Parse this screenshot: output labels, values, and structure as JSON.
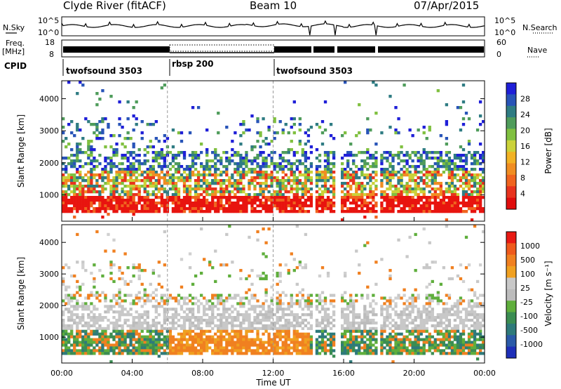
{
  "header": {
    "title": "Clyde River (fitACF)",
    "beam": "Beam 10",
    "date": "07/Apr/2015"
  },
  "top_panels": {
    "nsky_label": "N.Sky",
    "nsearch_label": "N.Search",
    "noise_ticks_left": [
      "10^5",
      "10^0"
    ],
    "noise_ticks_right": [
      "10^5",
      "10^0"
    ],
    "freq_label": "Freq.",
    "freq_unit": "[MHz]",
    "freq_ticks": [
      "18",
      "8"
    ],
    "nave_label": "Nave",
    "nave_ticks": [
      "60",
      "0"
    ],
    "cpid_label": "CPID",
    "cpid_segments": [
      {
        "name": "twofsound 3503",
        "start_hr": 0,
        "end_hr": 6
      },
      {
        "name": "rbsp 200",
        "start_hr": 6,
        "end_hr": 12
      },
      {
        "name": "twofsound 3503",
        "start_hr": 12,
        "end_hr": 24
      }
    ]
  },
  "chart_data": [
    {
      "type": "heatmap",
      "title": "",
      "xlabel": "Time UT",
      "ylabel": "Slant Range [km]",
      "x_ticks": [
        "00:00",
        "04:00",
        "08:00",
        "12:00",
        "16:00",
        "20:00",
        "00:00"
      ],
      "xlim_hours": [
        0,
        24
      ],
      "y_ticks": [
        1000,
        2000,
        3000,
        4000
      ],
      "ylim_km": [
        180,
        4560
      ],
      "colorbar_label": "Power [dB]",
      "colorbar_ticks": [
        4,
        8,
        12,
        16,
        20,
        24,
        28
      ],
      "colorbar_colors": [
        "#1f1fd8",
        "#2854b8",
        "#2f7c83",
        "#4f9c5b",
        "#80c040",
        "#cbd23a",
        "#f2b224",
        "#f08d22",
        "#f0641f",
        "#e8331e",
        "#e00d0d"
      ]
    },
    {
      "type": "heatmap",
      "title": "",
      "xlabel": "Time UT",
      "ylabel": "Slant Range [km]",
      "x_ticks": [
        "00:00",
        "04:00",
        "08:00",
        "12:00",
        "16:00",
        "20:00",
        "00:00"
      ],
      "xlim_hours": [
        0,
        24
      ],
      "y_ticks": [
        1000,
        2000,
        3000,
        4000
      ],
      "ylim_km": [
        180,
        4560
      ],
      "colorbar_label": "Velocity [m s⁻¹]",
      "colorbar_ticks": [
        "1000",
        "500",
        "100",
        "25",
        "-25",
        "-100",
        "-500",
        "-1000"
      ],
      "colorbar_colors": [
        "#1e2fb8",
        "#2a5aa8",
        "#2e7a7a",
        "#3b8d52",
        "#5fae3c",
        "#bcbcbc",
        "#c8c8c8",
        "#f0a020",
        "#f08020",
        "#ef5a1c",
        "#e81a14"
      ]
    }
  ]
}
